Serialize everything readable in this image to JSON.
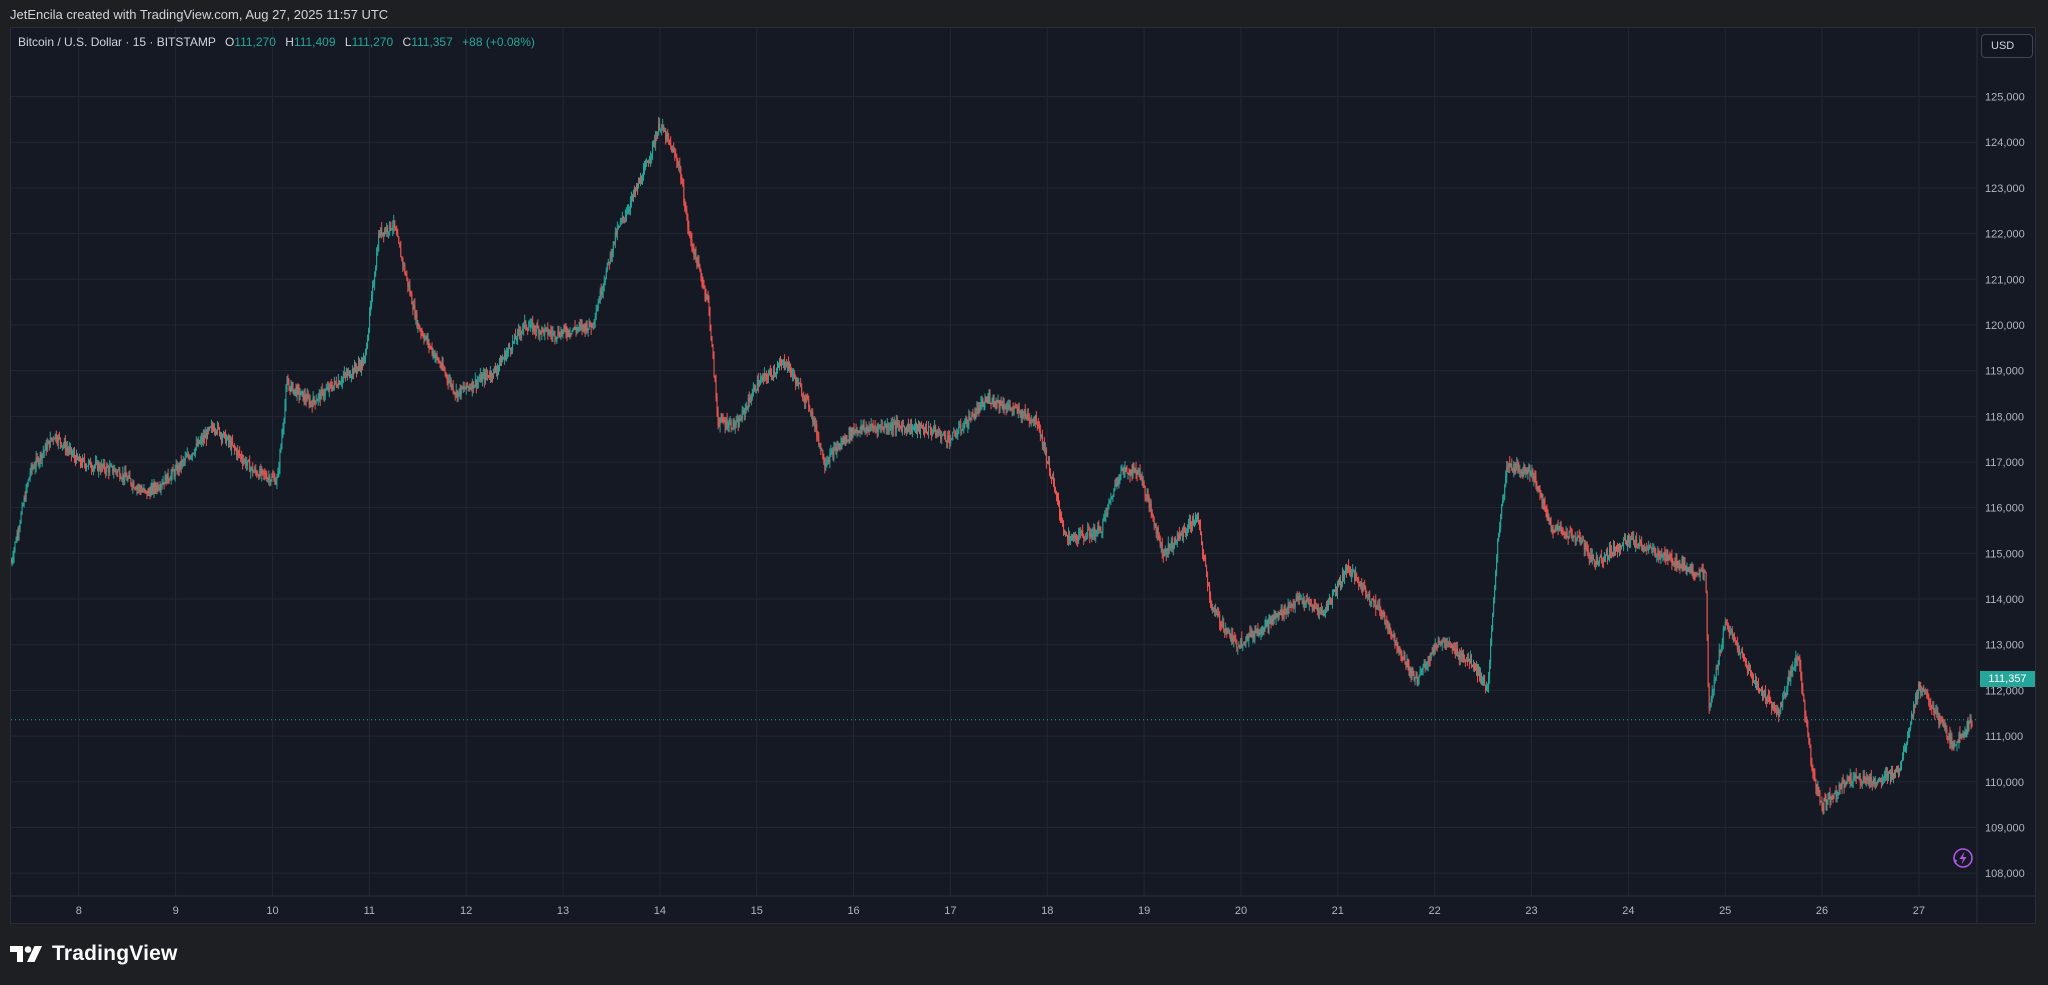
{
  "header": {
    "credit": "JetEncila created with TradingView.com, Aug 27, 2025 11:57 UTC"
  },
  "legend": {
    "symbol": "Bitcoin / U.S. Dollar · 15 · BITSTAMP",
    "open_label": "O",
    "open": "111,270",
    "high_label": "H",
    "high": "111,409",
    "low_label": "L",
    "low": "111,270",
    "close_label": "C",
    "close": "111,357",
    "change": "+88 (+0.08%)"
  },
  "currency": "USD",
  "last_price": "111,357",
  "footer": {
    "brand": "TradingView"
  },
  "colors": {
    "up": "#26a69a",
    "down": "#ef5350",
    "grid": "#232733",
    "background": "#151924",
    "axis_text": "#b2b5be",
    "alert": "#b056e6"
  },
  "chart_data": {
    "type": "candlestick",
    "interval": "15",
    "exchange": "BITSTAMP",
    "x_tick_labels": [
      "8",
      "9",
      "10",
      "11",
      "12",
      "13",
      "14",
      "15",
      "16",
      "17",
      "18",
      "19",
      "20",
      "21",
      "22",
      "23",
      "24",
      "25",
      "26",
      "27"
    ],
    "y_tick_labels": [
      "108,000",
      "109,000",
      "110,000",
      "111,000",
      "112,000",
      "113,000",
      "114,000",
      "115,000",
      "116,000",
      "117,000",
      "118,000",
      "119,000",
      "120,000",
      "121,000",
      "122,000",
      "123,000",
      "124,000",
      "125,000"
    ],
    "ylim": [
      107500,
      126500
    ],
    "xlim": [
      7.3,
      27.6
    ],
    "grid": true,
    "last_price": 111357,
    "approx_path": [
      {
        "x": 7.3,
        "y": 114800
      },
      {
        "x": 7.5,
        "y": 116800
      },
      {
        "x": 7.75,
        "y": 117600
      },
      {
        "x": 8.0,
        "y": 117000
      },
      {
        "x": 8.4,
        "y": 116800
      },
      {
        "x": 8.7,
        "y": 116300
      },
      {
        "x": 9.0,
        "y": 116800
      },
      {
        "x": 9.4,
        "y": 117800
      },
      {
        "x": 9.8,
        "y": 116800
      },
      {
        "x": 10.05,
        "y": 116600
      },
      {
        "x": 10.15,
        "y": 118700
      },
      {
        "x": 10.4,
        "y": 118300
      },
      {
        "x": 10.7,
        "y": 118800
      },
      {
        "x": 10.95,
        "y": 119200
      },
      {
        "x": 11.1,
        "y": 122000
      },
      {
        "x": 11.25,
        "y": 122200
      },
      {
        "x": 11.5,
        "y": 120000
      },
      {
        "x": 11.9,
        "y": 118500
      },
      {
        "x": 12.3,
        "y": 119000
      },
      {
        "x": 12.6,
        "y": 120000
      },
      {
        "x": 12.9,
        "y": 119800
      },
      {
        "x": 13.3,
        "y": 120000
      },
      {
        "x": 13.55,
        "y": 122000
      },
      {
        "x": 13.85,
        "y": 123400
      },
      {
        "x": 14.0,
        "y": 124400
      },
      {
        "x": 14.2,
        "y": 123500
      },
      {
        "x": 14.3,
        "y": 122000
      },
      {
        "x": 14.5,
        "y": 120500
      },
      {
        "x": 14.6,
        "y": 117900
      },
      {
        "x": 14.8,
        "y": 117800
      },
      {
        "x": 15.0,
        "y": 118700
      },
      {
        "x": 15.3,
        "y": 119200
      },
      {
        "x": 15.55,
        "y": 118200
      },
      {
        "x": 15.7,
        "y": 117000
      },
      {
        "x": 16.0,
        "y": 117700
      },
      {
        "x": 16.4,
        "y": 117800
      },
      {
        "x": 16.8,
        "y": 117700
      },
      {
        "x": 17.0,
        "y": 117500
      },
      {
        "x": 17.4,
        "y": 118400
      },
      {
        "x": 17.9,
        "y": 117900
      },
      {
        "x": 18.05,
        "y": 116600
      },
      {
        "x": 18.2,
        "y": 115300
      },
      {
        "x": 18.55,
        "y": 115500
      },
      {
        "x": 18.75,
        "y": 116800
      },
      {
        "x": 18.95,
        "y": 116800
      },
      {
        "x": 19.2,
        "y": 115000
      },
      {
        "x": 19.55,
        "y": 115800
      },
      {
        "x": 19.7,
        "y": 113800
      },
      {
        "x": 19.95,
        "y": 113000
      },
      {
        "x": 20.3,
        "y": 113500
      },
      {
        "x": 20.6,
        "y": 114000
      },
      {
        "x": 20.85,
        "y": 113700
      },
      {
        "x": 21.1,
        "y": 114700
      },
      {
        "x": 21.45,
        "y": 113700
      },
      {
        "x": 21.8,
        "y": 112200
      },
      {
        "x": 22.05,
        "y": 113100
      },
      {
        "x": 22.4,
        "y": 112600
      },
      {
        "x": 22.55,
        "y": 112000
      },
      {
        "x": 22.65,
        "y": 115300
      },
      {
        "x": 22.75,
        "y": 116900
      },
      {
        "x": 23.0,
        "y": 116800
      },
      {
        "x": 23.2,
        "y": 115600
      },
      {
        "x": 23.5,
        "y": 115300
      },
      {
        "x": 23.65,
        "y": 114800
      },
      {
        "x": 24.0,
        "y": 115300
      },
      {
        "x": 24.3,
        "y": 115000
      },
      {
        "x": 24.6,
        "y": 114700
      },
      {
        "x": 24.8,
        "y": 114500
      },
      {
        "x": 24.83,
        "y": 111500
      },
      {
        "x": 25.0,
        "y": 113500
      },
      {
        "x": 25.3,
        "y": 112200
      },
      {
        "x": 25.55,
        "y": 111500
      },
      {
        "x": 25.75,
        "y": 112800
      },
      {
        "x": 25.9,
        "y": 110200
      },
      {
        "x": 26.0,
        "y": 109500
      },
      {
        "x": 26.3,
        "y": 110100
      },
      {
        "x": 26.6,
        "y": 110000
      },
      {
        "x": 26.8,
        "y": 110300
      },
      {
        "x": 27.0,
        "y": 112100
      },
      {
        "x": 27.15,
        "y": 111600
      },
      {
        "x": 27.35,
        "y": 110800
      },
      {
        "x": 27.55,
        "y": 111357
      }
    ]
  }
}
